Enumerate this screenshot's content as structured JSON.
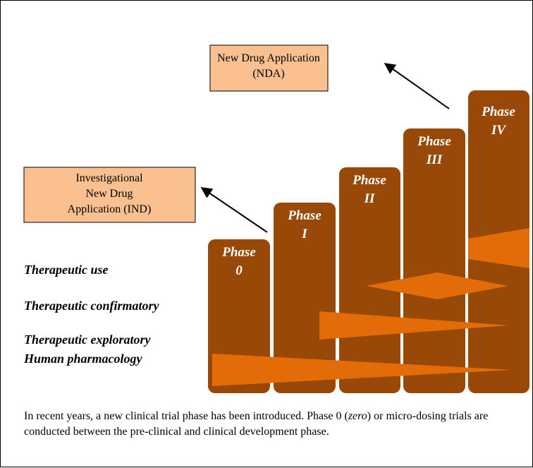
{
  "boxes": [
    {
      "lines": [
        "New Drug Application",
        "(NDA)"
      ]
    },
    {
      "lines": [
        "Investigational",
        "New Drug",
        "Application (IND)"
      ]
    }
  ],
  "phases": [
    {
      "word": "Phase",
      "numeral": "0"
    },
    {
      "word": "Phase",
      "numeral": "I"
    },
    {
      "word": "Phase",
      "numeral": "II"
    },
    {
      "word": "Phase",
      "numeral": "III"
    },
    {
      "word": "Phase",
      "numeral": "IV"
    }
  ],
  "rows": [
    "Therapeutic use",
    "Therapeutic confirmatory",
    "Therapeutic exploratory",
    "Human pharmacology"
  ],
  "caption": {
    "before": "In recent years, a new clinical trial phase has been introduced. Phase 0 (",
    "italic": "zero",
    "after": ") or micro-dosing trials are conducted between the pre-clinical and clinical development phase."
  }
}
